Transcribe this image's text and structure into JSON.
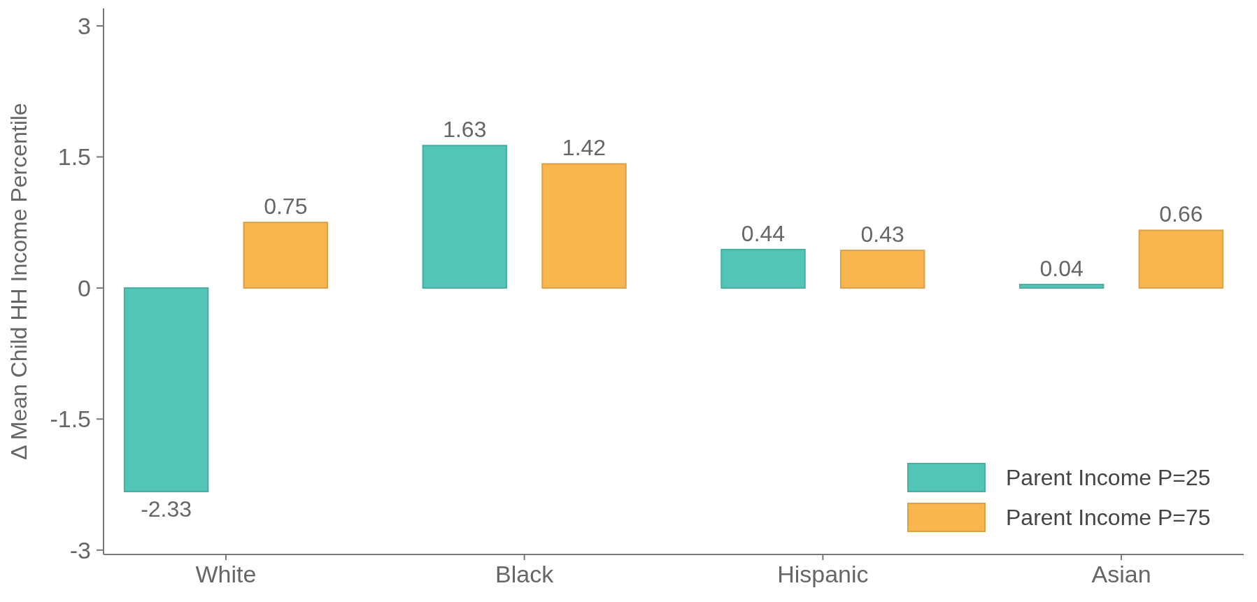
{
  "chart_data": {
    "type": "bar",
    "ylabel": "Δ Mean Child HH Income Percentile",
    "categories": [
      "White",
      "Black",
      "Hispanic",
      "Asian"
    ],
    "series": [
      {
        "name": "Parent Income P=25",
        "color": "#52c5b6",
        "values": [
          -2.33,
          1.63,
          0.44,
          0.04
        ]
      },
      {
        "name": "Parent Income P=75",
        "color": "#f9b54e",
        "values": [
          0.75,
          1.42,
          0.43,
          0.66
        ]
      }
    ],
    "ylim": [
      -3.05,
      3.2
    ],
    "yticks": [
      -3,
      -1.5,
      0,
      1.5,
      3
    ],
    "data_labels": true,
    "legend": "bottom right",
    "grid": false
  }
}
